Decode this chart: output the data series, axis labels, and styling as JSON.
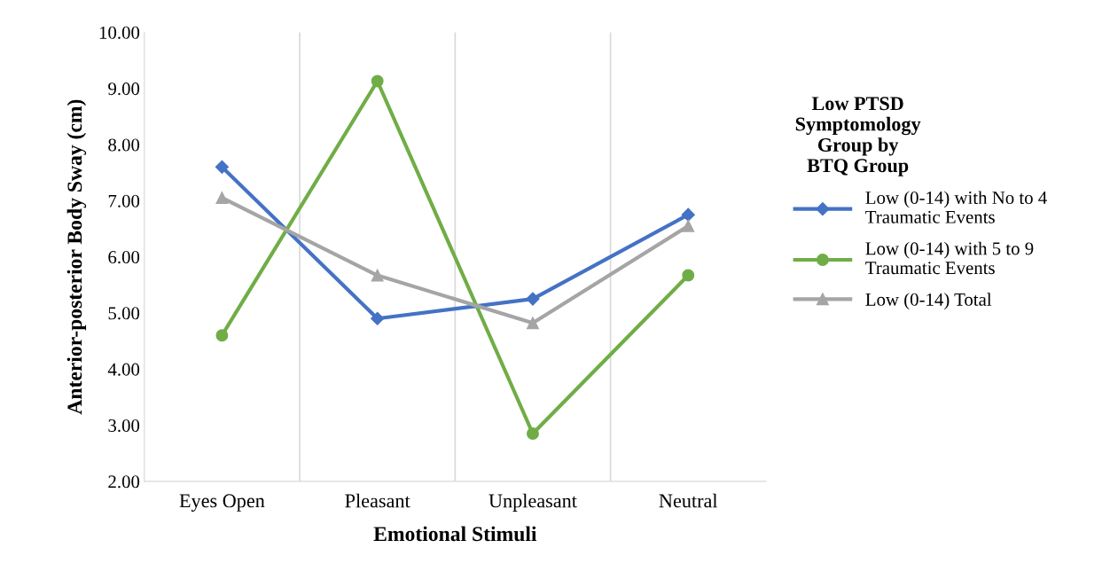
{
  "chart_data": {
    "type": "line",
    "xlabel": "Emotional Stimuli",
    "ylabel": "Anterior-posterior Body Sway (cm)",
    "legend_title": "Low PTSD\nSymptomology\nGroup by\nBTQ Group",
    "categories": [
      "Eyes Open",
      "Pleasant",
      "Unpleasant",
      "Neutral"
    ],
    "series": [
      {
        "name": "Low (0-14) with No to 4\nTraumatic Events",
        "color": "#4472c4",
        "marker": "diamond",
        "values": [
          7.6,
          4.9,
          5.25,
          6.75
        ]
      },
      {
        "name": "Low (0-14) with 5 to 9\nTraumatic Events",
        "color": "#70ad47",
        "marker": "circle",
        "values": [
          4.6,
          9.13,
          2.85,
          5.67
        ]
      },
      {
        "name": "Low (0-14) Total",
        "color": "#a5a5a5",
        "marker": "triangle",
        "values": [
          7.05,
          5.67,
          4.82,
          6.55
        ]
      }
    ],
    "ylim": [
      2,
      10
    ],
    "yticks": [
      {
        "value": 2,
        "label": "2.00"
      },
      {
        "value": 3,
        "label": "3.00"
      },
      {
        "value": 4,
        "label": "4.00"
      },
      {
        "value": 5,
        "label": "5.00"
      },
      {
        "value": 6,
        "label": "6.00"
      },
      {
        "value": 7,
        "label": "7.00"
      },
      {
        "value": 8,
        "label": "8.00"
      },
      {
        "value": 9,
        "label": "9.00"
      },
      {
        "value": 10,
        "label": "10.00"
      }
    ],
    "grid": "x",
    "legend": "right"
  }
}
